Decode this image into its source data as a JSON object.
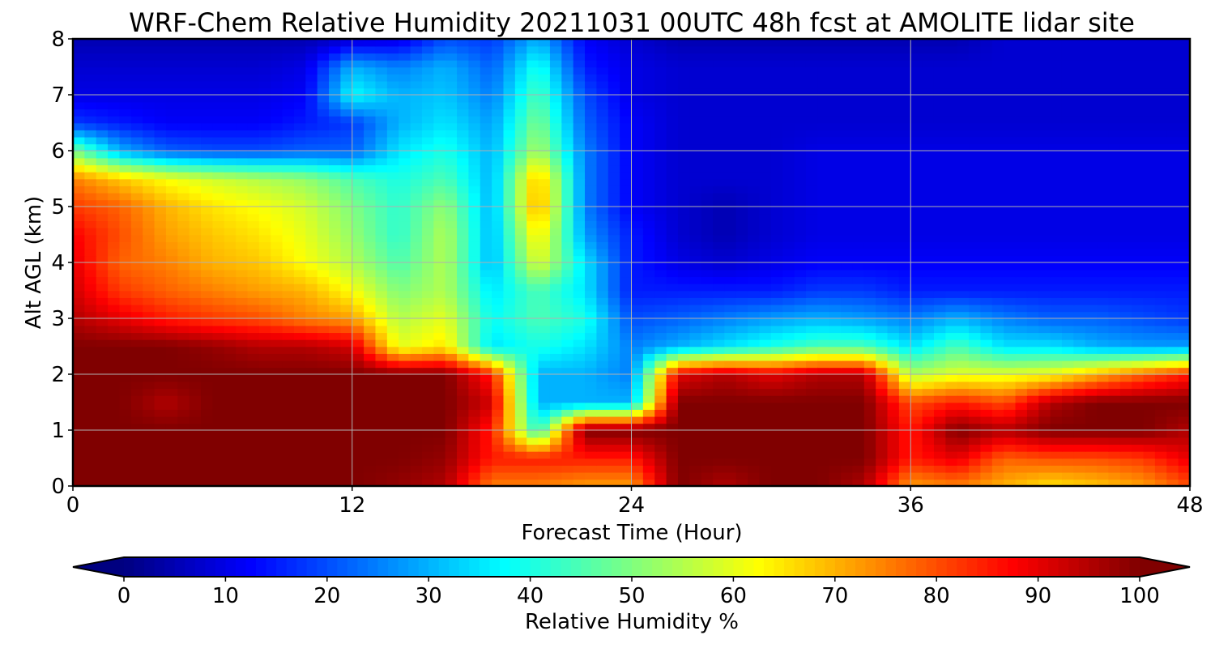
{
  "chart_data": {
    "type": "heatmap",
    "title": "WRF-Chem Relative Humidity 20211031 00UTC 48h fcst at AMOLITE lidar site",
    "xlabel": "Forecast Time (Hour)",
    "ylabel": "Alt AGL (km)",
    "xlim": [
      0,
      48
    ],
    "ylim": [
      0,
      8
    ],
    "x_ticks": [
      "0",
      "12",
      "24",
      "36",
      "48"
    ],
    "y_ticks": [
      "0",
      "1",
      "2",
      "3",
      "4",
      "5",
      "6",
      "7",
      "8"
    ],
    "grid": true,
    "colormap": "jet",
    "colorbar": {
      "label": "Relative Humidity %",
      "range": [
        0,
        100
      ],
      "ticks": [
        "0",
        "10",
        "20",
        "30",
        "40",
        "50",
        "60",
        "70",
        "80",
        "90",
        "100"
      ],
      "orientation": "horizontal",
      "extend": "both"
    },
    "x": [
      0,
      2,
      4,
      6,
      8,
      10,
      12,
      14,
      16,
      18,
      20,
      22,
      24,
      26,
      28,
      30,
      32,
      34,
      36,
      38,
      40,
      42,
      44,
      46,
      48
    ],
    "y": [
      0,
      0.5,
      1,
      1.5,
      2,
      2.5,
      3,
      3.5,
      4,
      4.5,
      5,
      5.5,
      6,
      6.5,
      7,
      7.5,
      8
    ],
    "z": [
      [
        100,
        100,
        100,
        100,
        100,
        100,
        100,
        98,
        95,
        75,
        75,
        72,
        72,
        100,
        95,
        100,
        100,
        95,
        72,
        75,
        70,
        65,
        68,
        72,
        80
      ],
      [
        100,
        100,
        100,
        100,
        100,
        100,
        100,
        100,
        98,
        85,
        85,
        85,
        85,
        100,
        100,
        100,
        100,
        100,
        85,
        90,
        78,
        80,
        80,
        82,
        90
      ],
      [
        100,
        100,
        100,
        100,
        100,
        100,
        100,
        100,
        100,
        85,
        40,
        100,
        100,
        100,
        100,
        100,
        100,
        100,
        85,
        100,
        95,
        100,
        100,
        100,
        95
      ],
      [
        100,
        100,
        95,
        100,
        100,
        100,
        100,
        100,
        100,
        92,
        30,
        30,
        30,
        100,
        100,
        100,
        100,
        100,
        80,
        85,
        80,
        95,
        100,
        100,
        100
      ],
      [
        100,
        100,
        100,
        100,
        100,
        100,
        100,
        100,
        100,
        85,
        30,
        30,
        25,
        90,
        95,
        90,
        95,
        95,
        55,
        60,
        60,
        62,
        70,
        78,
        85
      ],
      [
        100,
        100,
        100,
        98,
        95,
        95,
        92,
        60,
        65,
        35,
        40,
        35,
        25,
        30,
        35,
        40,
        45,
        45,
        35,
        45,
        35,
        35,
        30,
        28,
        28
      ],
      [
        95,
        90,
        85,
        82,
        80,
        75,
        72,
        55,
        60,
        38,
        45,
        40,
        20,
        22,
        25,
        28,
        30,
        28,
        25,
        30,
        25,
        22,
        22,
        20,
        18
      ],
      [
        92,
        82,
        78,
        75,
        72,
        70,
        62,
        50,
        55,
        35,
        45,
        35,
        15,
        15,
        15,
        15,
        18,
        18,
        15,
        15,
        15,
        15,
        15,
        15,
        15
      ],
      [
        90,
        78,
        75,
        70,
        68,
        62,
        55,
        45,
        55,
        30,
        60,
        35,
        15,
        10,
        8,
        10,
        12,
        12,
        12,
        12,
        12,
        12,
        12,
        12,
        12
      ],
      [
        88,
        80,
        72,
        68,
        65,
        60,
        52,
        42,
        55,
        30,
        65,
        28,
        15,
        8,
        5,
        8,
        10,
        10,
        10,
        10,
        10,
        10,
        10,
        10,
        10
      ],
      [
        82,
        78,
        70,
        65,
        62,
        58,
        50,
        42,
        52,
        30,
        72,
        25,
        12,
        8,
        5,
        8,
        10,
        10,
        10,
        10,
        10,
        10,
        10,
        10,
        10
      ],
      [
        75,
        68,
        62,
        58,
        55,
        52,
        45,
        40,
        45,
        30,
        70,
        25,
        12,
        8,
        8,
        8,
        10,
        10,
        10,
        10,
        10,
        10,
        10,
        10,
        10
      ],
      [
        50,
        30,
        22,
        20,
        20,
        22,
        22,
        35,
        40,
        30,
        55,
        25,
        12,
        8,
        8,
        8,
        10,
        10,
        10,
        10,
        10,
        10,
        10,
        10,
        10
      ],
      [
        18,
        15,
        12,
        12,
        12,
        15,
        18,
        30,
        35,
        28,
        50,
        22,
        12,
        8,
        8,
        8,
        8,
        8,
        8,
        8,
        8,
        8,
        8,
        8,
        8
      ],
      [
        10,
        10,
        10,
        10,
        10,
        12,
        38,
        30,
        32,
        25,
        45,
        20,
        10,
        8,
        8,
        8,
        8,
        8,
        8,
        8,
        8,
        8,
        8,
        8,
        8
      ],
      [
        8,
        8,
        8,
        8,
        8,
        10,
        30,
        25,
        30,
        22,
        40,
        15,
        10,
        8,
        8,
        8,
        8,
        8,
        8,
        8,
        8,
        8,
        8,
        8,
        8
      ],
      [
        5,
        5,
        5,
        5,
        5,
        5,
        8,
        10,
        20,
        18,
        30,
        12,
        8,
        5,
        5,
        5,
        5,
        5,
        5,
        5,
        8,
        8,
        8,
        8,
        8
      ]
    ]
  }
}
